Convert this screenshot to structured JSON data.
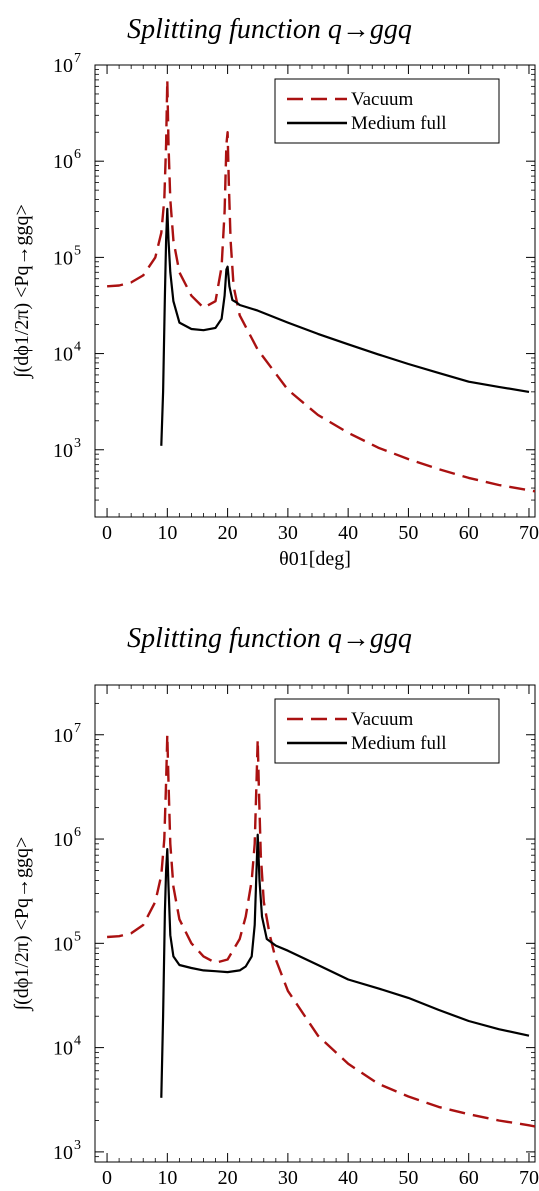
{
  "chart_data": [
    {
      "type": "line",
      "title": "Splitting function q→ggq",
      "xlabel": "θ01[deg]",
      "ylabel": "∫(dϕ1/2π) <Pq→ggq>",
      "xlim": [
        -2,
        71
      ],
      "ylim": [
        200,
        10000000
      ],
      "log_y": true,
      "x_ticks": [
        0,
        10,
        20,
        30,
        40,
        50,
        60,
        70
      ],
      "y_ticks": [
        1000,
        10000,
        100000,
        1000000,
        10000000
      ],
      "y_tick_labels": [
        "10",
        "10",
        "10",
        "10",
        "10"
      ],
      "y_tick_exponents": [
        "3",
        "4",
        "5",
        "6",
        "7"
      ],
      "legend": "top-right",
      "series": [
        {
          "name": "Vacuum",
          "color": "#aa1111",
          "style": "dashed",
          "x": [
            0,
            2,
            4,
            6,
            8,
            9,
            9.5,
            9.8,
            10,
            10.2,
            10.5,
            11,
            12,
            14,
            16,
            18,
            19,
            19.5,
            19.8,
            20,
            20.2,
            20.5,
            21,
            22,
            25,
            30,
            35,
            40,
            45,
            50,
            55,
            60,
            65,
            70,
            71
          ],
          "y": [
            50000,
            51000,
            55000,
            65000,
            100000,
            180000,
            400000,
            1500000,
            7000000,
            1500000,
            400000,
            150000,
            70000,
            40000,
            30000,
            35000,
            80000,
            300000,
            1500000,
            2000000,
            600000,
            150000,
            50000,
            25000,
            11000,
            4200,
            2300,
            1500,
            1050,
            800,
            630,
            510,
            430,
            380,
            370
          ]
        },
        {
          "name": "Medium full",
          "color": "#000000",
          "style": "solid",
          "x": [
            9,
            9.3,
            9.6,
            9.8,
            10,
            10.2,
            10.5,
            11,
            12,
            14,
            16,
            18,
            19,
            19.5,
            19.8,
            20,
            20.3,
            20.8,
            21.5,
            22,
            25,
            30,
            35,
            40,
            45,
            50,
            55,
            60,
            65,
            70
          ],
          "y": [
            1100,
            4000,
            40000,
            150000,
            320000,
            150000,
            70000,
            35000,
            21000,
            18000,
            17500,
            18500,
            23000,
            40000,
            75000,
            80000,
            50000,
            36000,
            34000,
            32000,
            28000,
            21000,
            16000,
            12500,
            9800,
            7800,
            6300,
            5100,
            4500,
            4000
          ]
        }
      ]
    },
    {
      "type": "line",
      "title": "Splitting function q→ggq",
      "xlabel": "θ01[deg]",
      "ylabel": "∫(dϕ1/2π) <Pq→ggq>",
      "xlim": [
        -2,
        71
      ],
      "ylim": [
        800,
        30000000
      ],
      "log_y": true,
      "x_ticks": [
        0,
        10,
        20,
        30,
        40,
        50,
        60,
        70
      ],
      "y_ticks": [
        1000,
        10000,
        100000,
        1000000,
        10000000
      ],
      "y_tick_labels": [
        "10",
        "10",
        "10",
        "10",
        "10"
      ],
      "y_tick_exponents": [
        "3",
        "4",
        "5",
        "6",
        "7"
      ],
      "legend": "top-right",
      "series": [
        {
          "name": "Vacuum",
          "color": "#aa1111",
          "style": "dashed",
          "x": [
            0,
            2,
            4,
            6,
            8,
            9,
            9.5,
            9.8,
            10,
            10.2,
            10.5,
            11,
            12,
            14,
            16,
            18,
            20,
            22,
            23,
            24,
            24.5,
            24.8,
            25,
            25.2,
            25.5,
            26,
            27,
            28,
            30,
            35,
            40,
            45,
            50,
            55,
            60,
            65,
            70,
            71
          ],
          "y": [
            115000,
            117000,
            125000,
            150000,
            250000,
            450000,
            1000000,
            3500000,
            10000000,
            3500000,
            900000,
            350000,
            170000,
            100000,
            75000,
            65000,
            70000,
            110000,
            180000,
            400000,
            900000,
            3500000,
            9000000,
            3000000,
            700000,
            250000,
            120000,
            70000,
            35000,
            13000,
            7000,
            4500,
            3400,
            2700,
            2300,
            2000,
            1800,
            1750
          ]
        },
        {
          "name": "Medium full",
          "color": "#000000",
          "style": "solid",
          "x": [
            9,
            9.3,
            9.6,
            9.8,
            10,
            10.2,
            10.5,
            11,
            12,
            14,
            16,
            18,
            20,
            22,
            23,
            24,
            24.5,
            24.8,
            25,
            25.3,
            25.7,
            26.5,
            28,
            30,
            35,
            40,
            45,
            50,
            55,
            60,
            65,
            70
          ],
          "y": [
            3300,
            20000,
            200000,
            500000,
            800000,
            350000,
            120000,
            75000,
            62000,
            58000,
            55000,
            54000,
            53000,
            55000,
            60000,
            75000,
            150000,
            500000,
            1100000,
            400000,
            180000,
            110000,
            95000,
            85000,
            62000,
            45000,
            37000,
            30000,
            23000,
            18000,
            15000,
            13000
          ]
        }
      ]
    }
  ]
}
